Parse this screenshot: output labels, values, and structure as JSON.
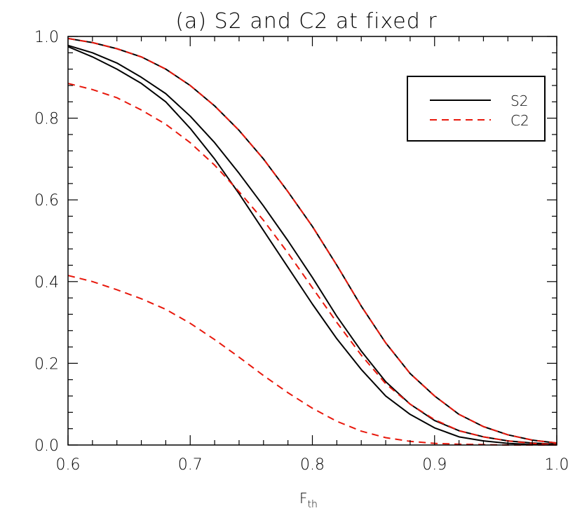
{
  "chart_data": {
    "type": "line",
    "title": "(a) S2 and C2 at fixed r",
    "xlabel": "F",
    "xlabel_subscript": "th",
    "ylabel": "",
    "xlim": [
      0.6,
      1.0
    ],
    "ylim": [
      0.0,
      1.0
    ],
    "xticks": [
      "0.6",
      "0.7",
      "0.8",
      "0.9",
      "1.0"
    ],
    "yticks": [
      "0.0",
      "0.2",
      "0.4",
      "0.6",
      "0.8",
      "1.0"
    ],
    "legend": {
      "placement": "top-right",
      "entries": [
        {
          "label": "S2",
          "color": "#000000",
          "style": "solid"
        },
        {
          "label": "C2",
          "color": "#e8180c",
          "style": "dashed"
        }
      ]
    },
    "series": [
      {
        "group": "S2",
        "color": "#000000",
        "style": "solid",
        "x": [
          0.6,
          0.62,
          0.64,
          0.66,
          0.68,
          0.7,
          0.72,
          0.74,
          0.76,
          0.78,
          0.8,
          0.82,
          0.84,
          0.86,
          0.88,
          0.9,
          0.92,
          0.94,
          0.96,
          0.98,
          1.0
        ],
        "y": [
          0.995,
          0.985,
          0.97,
          0.95,
          0.92,
          0.88,
          0.83,
          0.77,
          0.7,
          0.62,
          0.535,
          0.44,
          0.34,
          0.25,
          0.175,
          0.12,
          0.075,
          0.045,
          0.025,
          0.012,
          0.005
        ]
      },
      {
        "group": "S2",
        "color": "#000000",
        "style": "solid",
        "x": [
          0.6,
          0.62,
          0.64,
          0.66,
          0.68,
          0.7,
          0.72,
          0.74,
          0.76,
          0.78,
          0.8,
          0.82,
          0.84,
          0.86,
          0.88,
          0.9,
          0.92,
          0.94,
          0.96,
          0.98,
          1.0
        ],
        "y": [
          0.978,
          0.96,
          0.935,
          0.9,
          0.86,
          0.805,
          0.74,
          0.665,
          0.585,
          0.5,
          0.41,
          0.315,
          0.23,
          0.155,
          0.1,
          0.06,
          0.035,
          0.02,
          0.01,
          0.005,
          0.002
        ]
      },
      {
        "group": "S2",
        "color": "#000000",
        "style": "solid",
        "x": [
          0.6,
          0.62,
          0.64,
          0.66,
          0.68,
          0.7,
          0.72,
          0.74,
          0.76,
          0.78,
          0.8,
          0.82,
          0.84,
          0.86,
          0.88,
          0.9,
          0.92,
          0.94,
          0.96,
          0.98,
          1.0
        ],
        "y": [
          0.975,
          0.95,
          0.92,
          0.885,
          0.84,
          0.775,
          0.7,
          0.615,
          0.525,
          0.435,
          0.345,
          0.26,
          0.185,
          0.12,
          0.075,
          0.042,
          0.02,
          0.01,
          0.004,
          0.001,
          0.0
        ]
      },
      {
        "group": "C2",
        "color": "#e8180c",
        "style": "dashed",
        "x": [
          0.6,
          0.62,
          0.64,
          0.66,
          0.68,
          0.7,
          0.72,
          0.74,
          0.76,
          0.78,
          0.8,
          0.82,
          0.84,
          0.86,
          0.88,
          0.9,
          0.92,
          0.94,
          0.96,
          0.98,
          1.0
        ],
        "y": [
          0.995,
          0.985,
          0.97,
          0.95,
          0.92,
          0.88,
          0.83,
          0.77,
          0.7,
          0.62,
          0.535,
          0.44,
          0.34,
          0.25,
          0.175,
          0.12,
          0.075,
          0.045,
          0.025,
          0.012,
          0.005
        ]
      },
      {
        "group": "C2",
        "color": "#e8180c",
        "style": "dashed",
        "x": [
          0.6,
          0.62,
          0.64,
          0.66,
          0.68,
          0.7,
          0.72,
          0.74,
          0.76,
          0.78,
          0.8,
          0.82,
          0.84,
          0.86,
          0.88,
          0.9,
          0.92,
          0.94,
          0.96,
          0.98,
          1.0
        ],
        "y": [
          0.885,
          0.87,
          0.85,
          0.82,
          0.785,
          0.74,
          0.685,
          0.62,
          0.55,
          0.47,
          0.385,
          0.3,
          0.22,
          0.15,
          0.1,
          0.062,
          0.035,
          0.02,
          0.01,
          0.004,
          0.001
        ]
      },
      {
        "group": "C2",
        "color": "#e8180c",
        "style": "dashed",
        "x": [
          0.6,
          0.62,
          0.64,
          0.66,
          0.68,
          0.7,
          0.72,
          0.74,
          0.76,
          0.78,
          0.8,
          0.82,
          0.84,
          0.86,
          0.88,
          0.9,
          0.92,
          0.94,
          0.96,
          0.98,
          1.0
        ],
        "y": [
          0.415,
          0.4,
          0.38,
          0.358,
          0.332,
          0.298,
          0.258,
          0.215,
          0.17,
          0.128,
          0.09,
          0.058,
          0.034,
          0.018,
          0.009,
          0.004,
          0.002,
          0.001,
          0.0,
          0.0,
          0.0
        ]
      }
    ]
  }
}
